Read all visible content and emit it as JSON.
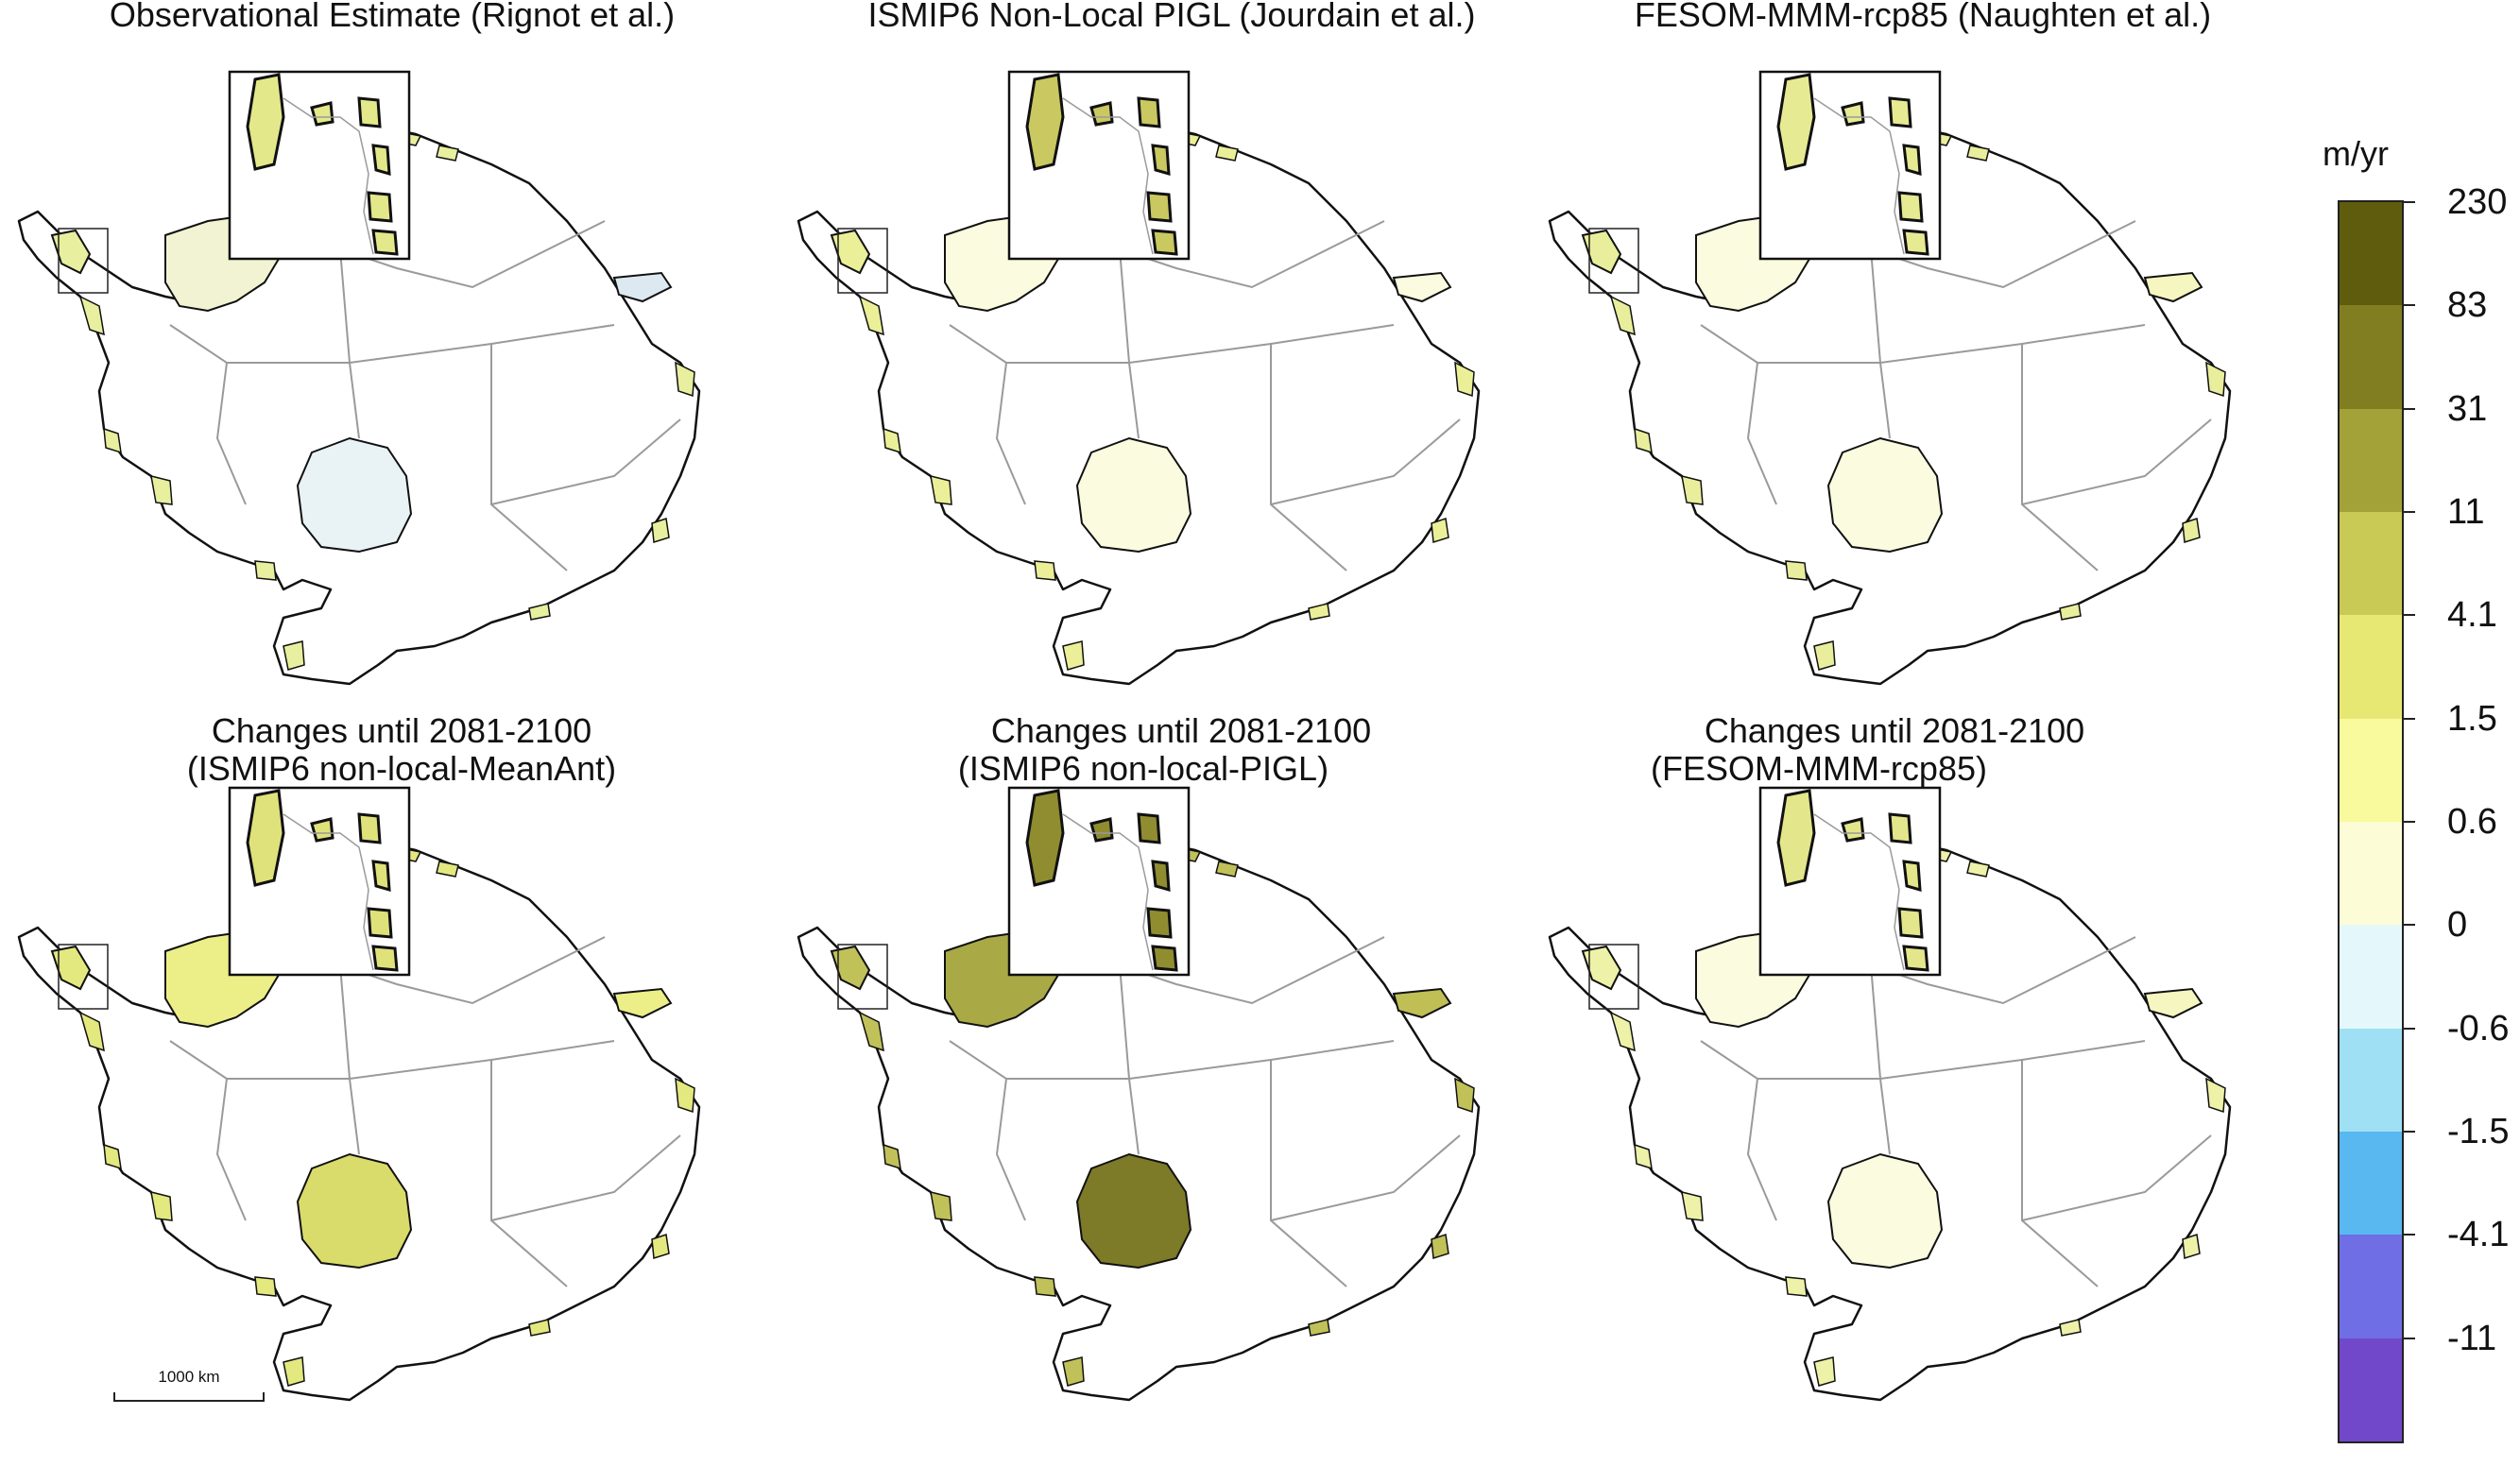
{
  "panels": [
    {
      "title_line1": "Observational Estimate (Rignot et al.)",
      "title_line2": ""
    },
    {
      "title_line1": "ISMIP6 Non-Local PIGL (Jourdain et al.)",
      "title_line2": ""
    },
    {
      "title_line1": "FESOM-MMM-rcp85 (Naughten et al.)",
      "title_line2": ""
    },
    {
      "title_line1": "Changes until 2081-2100",
      "title_line2": "(ISMIP6 non-local-MeanAnt)"
    },
    {
      "title_line1": "Changes until 2081-2100",
      "title_line2": "(ISMIP6 non-local-PIGL)"
    },
    {
      "title_line1": "Changes until 2081-2100",
      "title_line2": "(FESOM-MMM-rcp85)"
    }
  ],
  "panel_shelf_colors": [
    {
      "ross": "#e9f3f6",
      "ronne": "#f2f3d2",
      "fringe": "#e8ef9e",
      "amery": "#dde9f0",
      "inset": "#e3e88a"
    },
    {
      "ross": "#fbfbe0",
      "ronne": "#fbfbe0",
      "fringe": "#ebef98",
      "amery": "#fbfbe0",
      "inset": "#c9c861"
    },
    {
      "ross": "#fbfbe0",
      "ronne": "#fbfbe0",
      "fringe": "#e9ee9c",
      "amery": "#f5f6c0",
      "inset": "#e6ea92"
    },
    {
      "ross": "#d9dc6a",
      "ronne": "#ecef88",
      "fringe": "#e3e87f",
      "amery": "#ecef88",
      "inset": "#dfe27a"
    },
    {
      "ross": "#7d7a28",
      "ronne": "#a9aa45",
      "fringe": "#c0c158",
      "amery": "#bfbf55",
      "inset": "#8f8d30"
    },
    {
      "ross": "#fbfbe0",
      "ronne": "#fbfbe0",
      "fringe": "#eef2a8",
      "amery": "#f5f6c0",
      "inset": "#e3e68a"
    }
  ],
  "scale_bar": {
    "label": "1000 km"
  },
  "colorbar": {
    "unit": "m/yr",
    "tick_labels": [
      "230",
      "83",
      "31",
      "11",
      "4.1",
      "1.5",
      "0.6",
      "0",
      "-0.6",
      "-1.5",
      "-4.1",
      "-11"
    ],
    "colors": [
      "#5f5c0e",
      "#817e21",
      "#a2a238",
      "#c8ca55",
      "#e6e873",
      "#f9fa9d",
      "#fcfcd6",
      "#e4f8fb",
      "#9fe0f5",
      "#58b8ef",
      "#6f6ee5",
      "#7148c9"
    ]
  }
}
